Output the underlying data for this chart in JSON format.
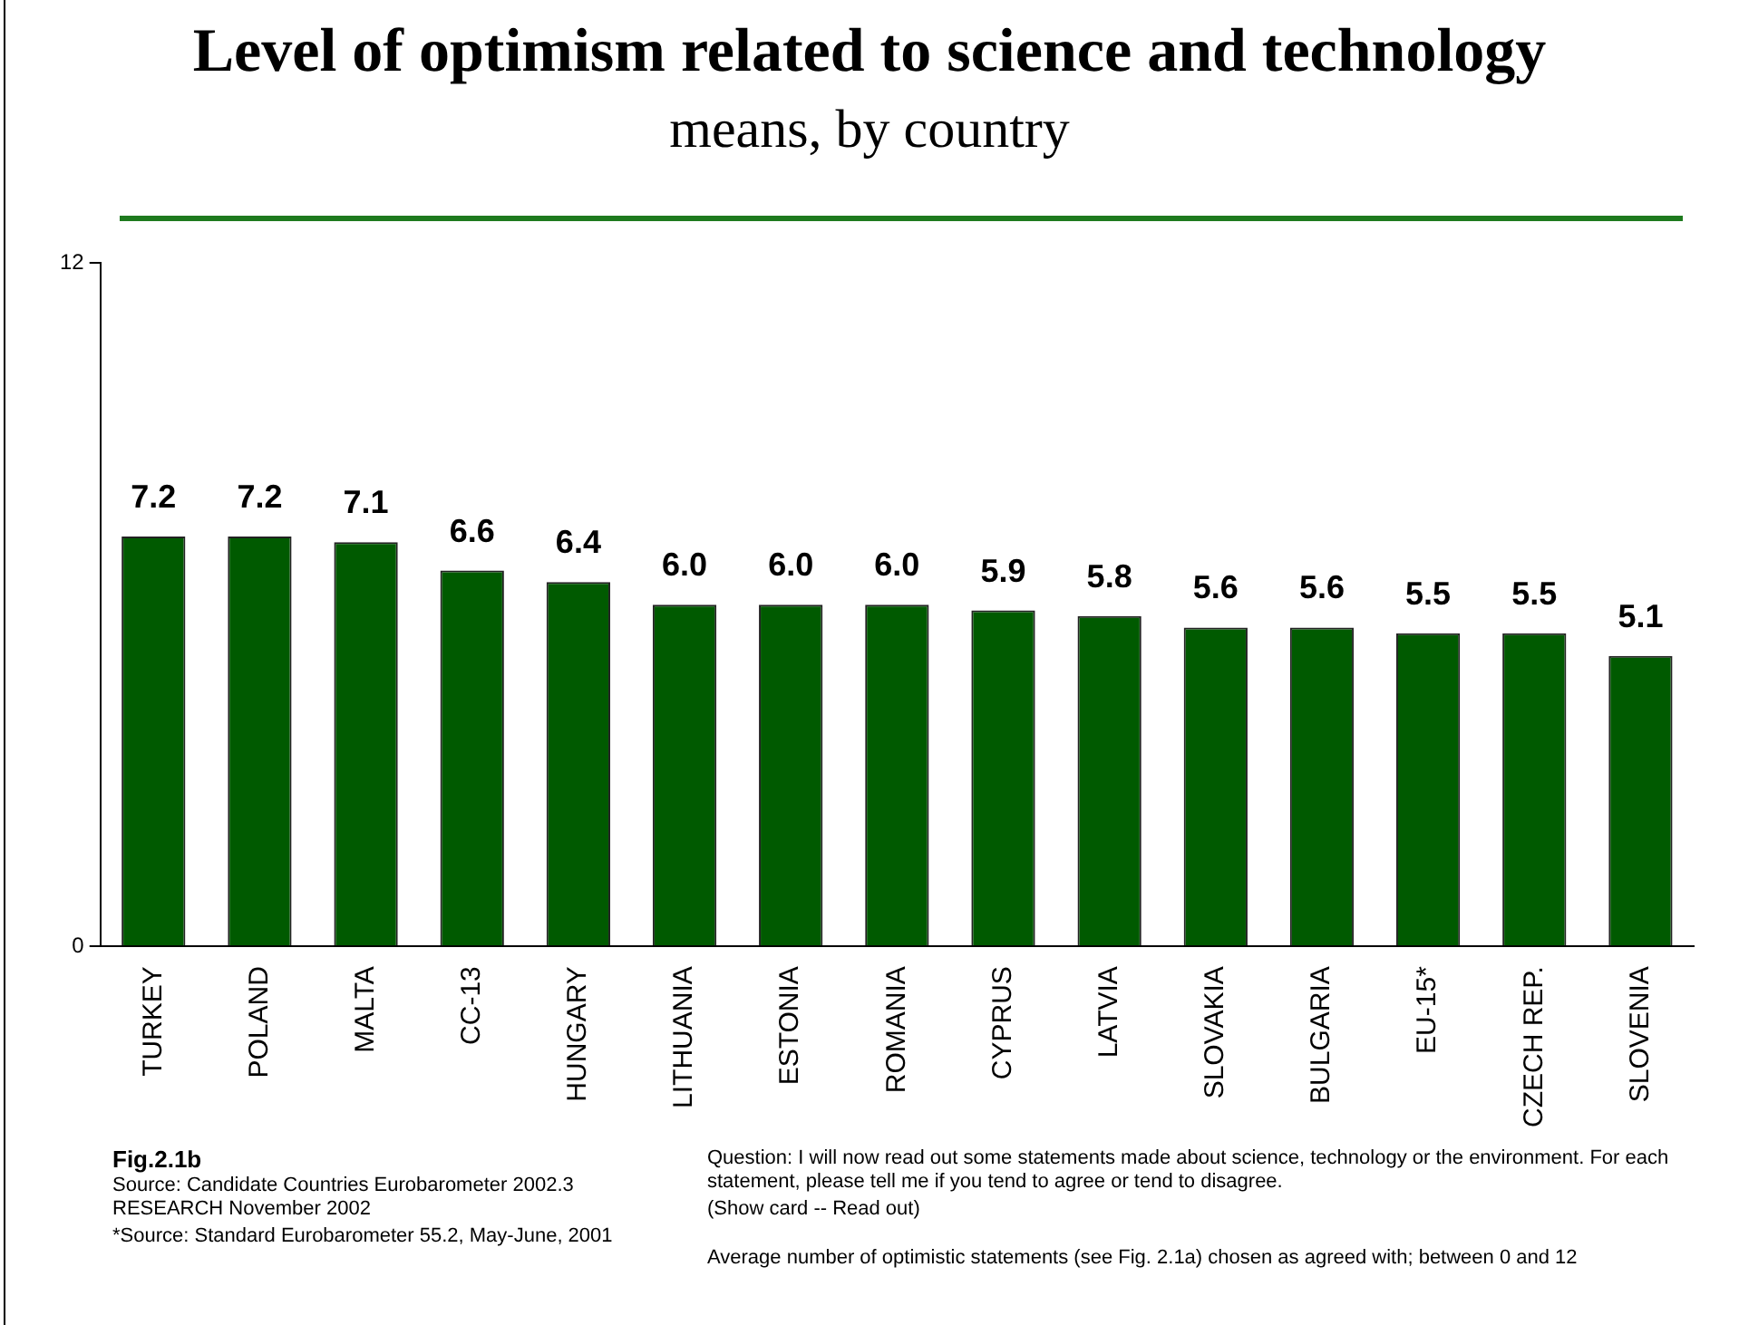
{
  "chart_data": {
    "type": "bar",
    "title": "Level of optimism related to science and technology",
    "subtitle": "means, by country",
    "categories": [
      "TURKEY",
      "POLAND",
      "MALTA",
      "CC-13",
      "HUNGARY",
      "LITHUANIA",
      "ESTONIA",
      "ROMANIA",
      "CYPRUS",
      "LATVIA",
      "SLOVAKIA",
      "BULGARIA",
      "EU-15*",
      "CZECH REP.",
      "SLOVENIA"
    ],
    "values": [
      7.2,
      7.2,
      7.1,
      6.6,
      6.4,
      6.0,
      6.0,
      6.0,
      5.9,
      5.8,
      5.6,
      5.6,
      5.5,
      5.5,
      5.1
    ],
    "color": "#005a00",
    "ylim": [
      0,
      12
    ],
    "yticks": [
      0,
      12
    ],
    "grid": false,
    "legend": false,
    "value_labels": [
      "7.2",
      "7.2",
      "7.1",
      "6.6",
      "6.4",
      "6.0",
      "6.0",
      "6.0",
      "5.9",
      "5.8",
      "5.6",
      "5.6",
      "5.5",
      "5.5",
      "5.1"
    ],
    "annotations": [
      "Fig.2.1b",
      "Source: Candidate Countries Eurobarometer 2002.3 RESEARCH November  2002",
      "*Source: Standard Eurobarometer 55.2, May-June, 2001",
      "Question:  I will now read out some statements made about science, technology or the environment. For each statement, please tell me if you tend to agree or tend to disagree.",
      "(Show card -- Read out)",
      "Average number of optimistic statements (see Fig. 2.1a) chosen as agreed with; between 0 and 12"
    ]
  }
}
